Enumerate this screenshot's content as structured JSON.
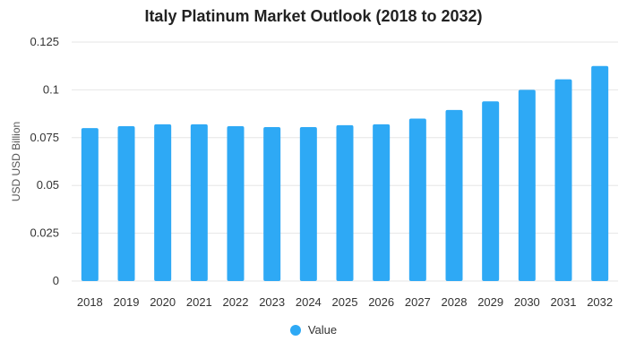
{
  "chart_data": {
    "type": "bar",
    "title": "Italy Platinum Market Outlook (2018 to 2032)",
    "xlabel": "",
    "ylabel": "USD USD Billion",
    "categories": [
      "2018",
      "2019",
      "2020",
      "2021",
      "2022",
      "2023",
      "2024",
      "2025",
      "2026",
      "2027",
      "2028",
      "2029",
      "2030",
      "2031",
      "2032"
    ],
    "series": [
      {
        "name": "Value",
        "color": "#2ea9f5",
        "values": [
          0.08,
          0.081,
          0.082,
          0.082,
          0.081,
          0.0805,
          0.0805,
          0.0815,
          0.082,
          0.085,
          0.0895,
          0.094,
          0.1,
          0.1055,
          0.1125
        ]
      }
    ],
    "ylim": [
      0,
      0.125
    ],
    "yticks": [
      0,
      0.025,
      0.05,
      0.075,
      0.1,
      0.125
    ],
    "ytick_labels": [
      "0",
      "0.025",
      "0.05",
      "0.075",
      "0.1",
      "0.125"
    ],
    "grid": true,
    "legend_position": "bottom-center",
    "gridline_color": "#e6e6e6"
  }
}
